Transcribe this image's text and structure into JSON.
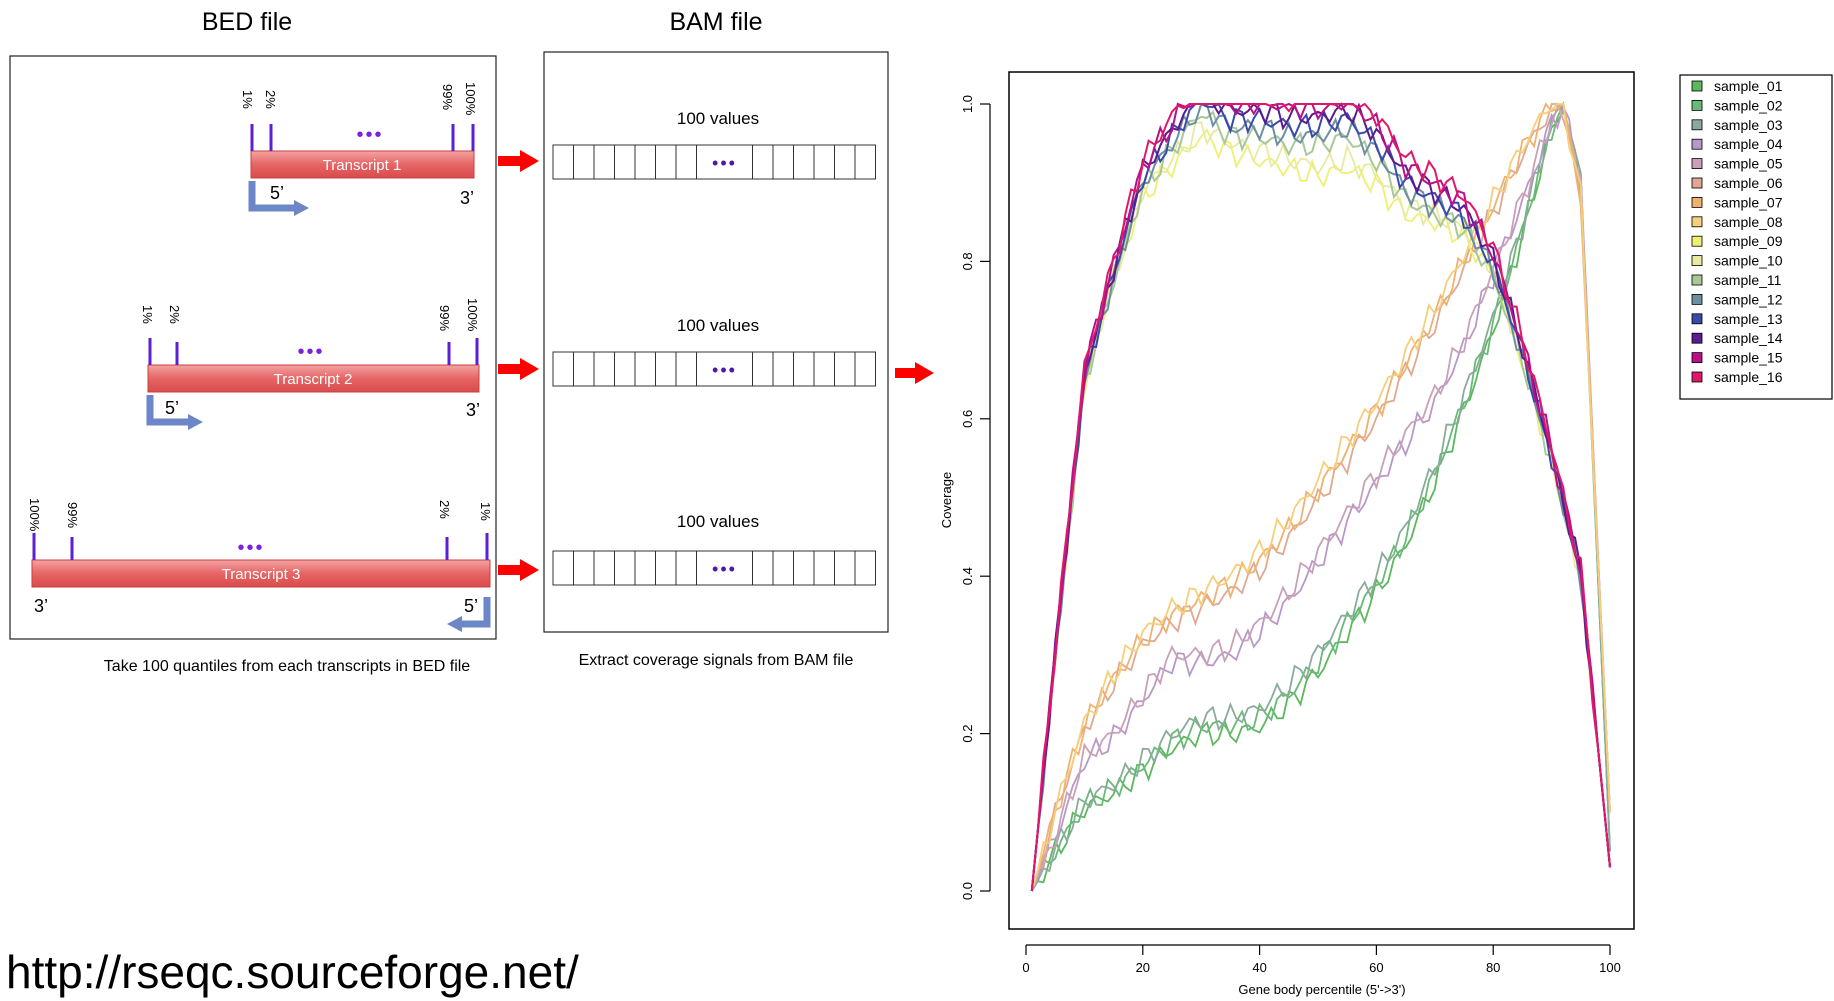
{
  "bed_panel": {
    "heading": "BED file",
    "caption": "Take 100 quantiles from each transcripts in BED file",
    "transcripts": [
      {
        "label": "Transcript 1",
        "ticks_left": [
          "1%",
          "2%"
        ],
        "ticks_right": [
          "99%",
          "100%"
        ],
        "dots": "•••",
        "five_prime": "5’",
        "three_prime": "3’",
        "strand": "+"
      },
      {
        "label": "Transcript 2",
        "ticks_left": [
          "1%",
          "2%"
        ],
        "ticks_right": [
          "99%",
          "100%"
        ],
        "dots": "•••",
        "five_prime": "5’",
        "three_prime": "3’",
        "strand": "+"
      },
      {
        "label": "Transcript 3",
        "ticks_left": [
          "100%",
          "99%"
        ],
        "ticks_right": [
          "2%",
          "1%"
        ],
        "dots": "•••",
        "five_prime": "5’",
        "three_prime": "3’",
        "strand": "-"
      }
    ]
  },
  "bam_panel": {
    "heading": "BAM file",
    "caption": "Extract coverage signals from BAM file",
    "rows": [
      {
        "label": "100 values",
        "dots": "•••"
      },
      {
        "label": "100 values",
        "dots": "•••"
      },
      {
        "label": "100 values",
        "dots": "•••"
      }
    ]
  },
  "url": "http://rseqc.sourceforge.net/",
  "colors": {
    "transcript_fill": "#e85c5c",
    "tick": "#5b1fd6",
    "strand_arrow": "#6c86c8",
    "red_arrow": "#ff0000",
    "dots": "#4b1aa6"
  },
  "chart_data": {
    "type": "line",
    "title": "",
    "xlabel": "Gene body percentile (5'->3')",
    "ylabel": "Coverage",
    "xlim": [
      0,
      100
    ],
    "ylim": [
      0,
      1
    ],
    "xticks": [
      "0",
      "20",
      "40",
      "60",
      "80",
      "100"
    ],
    "yticks": [
      "0.0",
      "0.2",
      "0.4",
      "0.6",
      "0.8",
      "1.0"
    ],
    "legend_position": "top-right outside",
    "series": [
      {
        "name": "sample_01",
        "color": "#5cb85c",
        "group": "green"
      },
      {
        "name": "sample_02",
        "color": "#6ab87a",
        "group": "green"
      },
      {
        "name": "sample_03",
        "color": "#8aaa9a",
        "group": "green"
      },
      {
        "name": "sample_04",
        "color": "#b898c8",
        "group": "lilac"
      },
      {
        "name": "sample_05",
        "color": "#c8a0b8",
        "group": "lilac"
      },
      {
        "name": "sample_06",
        "color": "#e0a890",
        "group": "orange"
      },
      {
        "name": "sample_07",
        "color": "#f0b070",
        "group": "orange"
      },
      {
        "name": "sample_08",
        "color": "#f5cf7a",
        "group": "orange"
      },
      {
        "name": "sample_09",
        "color": "#eef070",
        "group": "yellow"
      },
      {
        "name": "sample_10",
        "color": "#e8eaa0",
        "group": "yellow"
      },
      {
        "name": "sample_11",
        "color": "#a8c898",
        "group": "top"
      },
      {
        "name": "sample_12",
        "color": "#6e8fa0",
        "group": "top"
      },
      {
        "name": "sample_13",
        "color": "#3a4aa8",
        "group": "top"
      },
      {
        "name": "sample_14",
        "color": "#5a1a90",
        "group": "top"
      },
      {
        "name": "sample_15",
        "color": "#b8108a",
        "group": "top"
      },
      {
        "name": "sample_16",
        "color": "#e0186a",
        "group": "top"
      }
    ],
    "profiles": {
      "top": {
        "x": [
          1,
          5,
          10,
          15,
          20,
          25,
          30,
          35,
          40,
          45,
          50,
          55,
          60,
          65,
          70,
          75,
          80,
          85,
          90,
          95,
          100
        ],
        "y": [
          0.0,
          0.3,
          0.65,
          0.78,
          0.9,
          0.95,
          1.0,
          0.97,
          0.97,
          0.96,
          0.96,
          0.97,
          0.94,
          0.89,
          0.87,
          0.85,
          0.79,
          0.68,
          0.55,
          0.4,
          0.03
        ]
      },
      "green": {
        "x": [
          1,
          5,
          10,
          15,
          20,
          25,
          30,
          35,
          40,
          45,
          50,
          55,
          60,
          65,
          70,
          75,
          80,
          85,
          90,
          92,
          95,
          100
        ],
        "y": [
          0.0,
          0.05,
          0.11,
          0.13,
          0.16,
          0.19,
          0.21,
          0.21,
          0.22,
          0.25,
          0.29,
          0.34,
          0.39,
          0.45,
          0.53,
          0.62,
          0.72,
          0.84,
          0.97,
          1.0,
          0.9,
          0.05
        ]
      },
      "lilac": {
        "x": [
          1,
          5,
          10,
          15,
          20,
          25,
          30,
          35,
          40,
          45,
          50,
          55,
          60,
          65,
          70,
          75,
          80,
          85,
          90,
          92,
          95,
          100
        ],
        "y": [
          0.0,
          0.07,
          0.17,
          0.2,
          0.25,
          0.3,
          0.3,
          0.31,
          0.34,
          0.38,
          0.43,
          0.48,
          0.53,
          0.58,
          0.63,
          0.7,
          0.79,
          0.88,
          0.98,
          1.0,
          0.9,
          0.1
        ]
      },
      "orange": {
        "x": [
          1,
          5,
          10,
          15,
          20,
          25,
          30,
          35,
          40,
          45,
          50,
          55,
          60,
          65,
          70,
          75,
          80,
          85,
          90,
          92,
          95,
          100
        ],
        "y": [
          0.0,
          0.1,
          0.21,
          0.27,
          0.32,
          0.35,
          0.37,
          0.39,
          0.42,
          0.46,
          0.51,
          0.56,
          0.61,
          0.67,
          0.73,
          0.8,
          0.87,
          0.94,
          1.0,
          1.0,
          0.88,
          0.1
        ]
      },
      "yellow": {
        "x": [
          1,
          5,
          10,
          15,
          20,
          25,
          30,
          35,
          40,
          45,
          50,
          55,
          60,
          65,
          70,
          75,
          80,
          85,
          90,
          95,
          100
        ],
        "y": [
          0.0,
          0.3,
          0.65,
          0.78,
          0.89,
          0.93,
          0.97,
          0.95,
          0.94,
          0.93,
          0.92,
          0.93,
          0.91,
          0.87,
          0.86,
          0.84,
          0.79,
          0.68,
          0.55,
          0.4,
          0.03
        ]
      }
    }
  }
}
